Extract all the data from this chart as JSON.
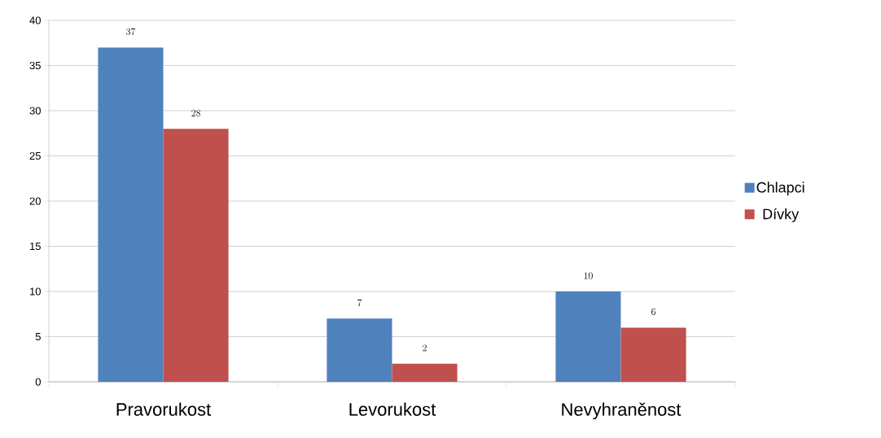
{
  "chart_data": {
    "type": "bar",
    "categories": [
      "Pravorukost",
      "Levorukost",
      "Nevyhraněnost"
    ],
    "series": [
      {
        "name": "Chlapci",
        "color": "#4f81bd",
        "values": [
          37,
          7,
          10
        ]
      },
      {
        "name": "Dívky",
        "color": "#c0504d",
        "values": [
          28,
          2,
          6
        ]
      }
    ],
    "ylim": [
      0,
      40
    ],
    "yticks": [
      0,
      5,
      10,
      15,
      20,
      25,
      30,
      35,
      40
    ],
    "grid": "y",
    "legend": "right",
    "data_labels": true
  }
}
